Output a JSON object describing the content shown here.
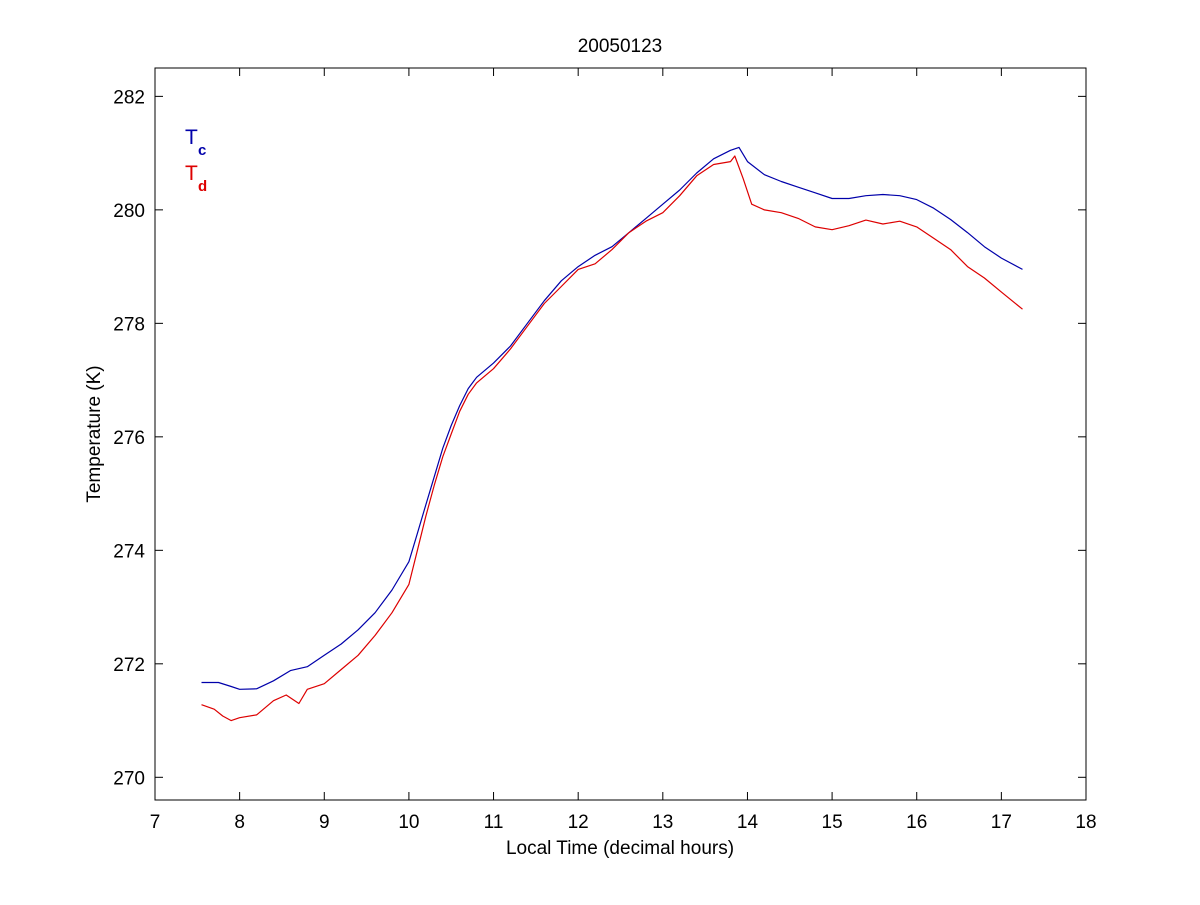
{
  "chart_data": {
    "type": "line",
    "title": "20050123",
    "xlabel": "Local Time (decimal hours)",
    "ylabel": "Temperature (K)",
    "xlim": [
      7,
      18
    ],
    "ylim": [
      269.6,
      282.5
    ],
    "xticks": [
      7,
      8,
      9,
      10,
      11,
      12,
      13,
      14,
      15,
      16,
      17,
      18
    ],
    "yticks": [
      270,
      272,
      274,
      276,
      278,
      280,
      282
    ],
    "xtick_labels": [
      "7",
      "8",
      "9",
      "10",
      "11",
      "12",
      "13",
      "14",
      "15",
      "16",
      "17",
      "18"
    ],
    "ytick_labels": [
      "270",
      "272",
      "274",
      "276",
      "278",
      "280",
      "282"
    ],
    "grid": false,
    "legend": "top-left",
    "legend_entries": [
      {
        "main": "T",
        "sub": "c",
        "color": "#0000aa"
      },
      {
        "main": "T",
        "sub": "d",
        "color": "#dd0000"
      }
    ],
    "series": [
      {
        "color": "#0000aa",
        "x": [
          7.55,
          7.75,
          7.9,
          8.0,
          8.2,
          8.4,
          8.6,
          8.8,
          9.0,
          9.2,
          9.4,
          9.6,
          9.8,
          10.0,
          10.1,
          10.2,
          10.3,
          10.4,
          10.5,
          10.6,
          10.7,
          10.8,
          11.0,
          11.2,
          11.4,
          11.6,
          11.8,
          12.0,
          12.2,
          12.4,
          12.6,
          12.8,
          13.0,
          13.2,
          13.4,
          13.6,
          13.8,
          13.9,
          14.0,
          14.2,
          14.4,
          14.6,
          14.8,
          15.0,
          15.2,
          15.4,
          15.6,
          15.8,
          16.0,
          16.2,
          16.4,
          16.6,
          16.8,
          17.0,
          17.25
        ],
        "y": [
          271.67,
          271.67,
          271.6,
          271.55,
          271.56,
          271.7,
          271.88,
          271.95,
          272.15,
          272.35,
          272.6,
          272.9,
          273.3,
          273.8,
          274.3,
          274.8,
          275.3,
          275.8,
          276.2,
          276.55,
          276.85,
          277.05,
          277.3,
          277.6,
          278.0,
          278.4,
          278.75,
          279.0,
          279.2,
          279.35,
          279.6,
          279.85,
          280.1,
          280.35,
          280.65,
          280.9,
          281.05,
          281.1,
          280.85,
          280.62,
          280.5,
          280.4,
          280.3,
          280.2,
          280.2,
          280.25,
          280.27,
          280.25,
          280.18,
          280.03,
          279.83,
          279.6,
          279.35,
          279.15,
          278.95
        ]
      },
      {
        "color": "#dd0000",
        "x": [
          7.55,
          7.7,
          7.8,
          7.9,
          8.0,
          8.2,
          8.4,
          8.55,
          8.7,
          8.8,
          9.0,
          9.2,
          9.4,
          9.6,
          9.8,
          10.0,
          10.1,
          10.2,
          10.3,
          10.4,
          10.5,
          10.6,
          10.7,
          10.8,
          11.0,
          11.2,
          11.4,
          11.6,
          11.8,
          12.0,
          12.2,
          12.4,
          12.6,
          12.8,
          13.0,
          13.2,
          13.4,
          13.6,
          13.8,
          13.85,
          13.95,
          14.05,
          14.2,
          14.4,
          14.6,
          14.8,
          15.0,
          15.2,
          15.4,
          15.6,
          15.8,
          16.0,
          16.2,
          16.4,
          16.6,
          16.8,
          17.0,
          17.25
        ],
        "y": [
          271.28,
          271.2,
          271.08,
          271.0,
          271.05,
          271.1,
          271.35,
          271.45,
          271.3,
          271.55,
          271.65,
          271.9,
          272.15,
          272.5,
          272.9,
          273.4,
          274.0,
          274.6,
          275.15,
          275.65,
          276.05,
          276.45,
          276.75,
          276.95,
          277.2,
          277.55,
          277.95,
          278.35,
          278.65,
          278.95,
          279.05,
          279.3,
          279.6,
          279.8,
          279.95,
          280.25,
          280.6,
          280.8,
          280.85,
          280.95,
          280.55,
          280.1,
          280.0,
          279.95,
          279.85,
          279.7,
          279.65,
          279.72,
          279.82,
          279.75,
          279.8,
          279.7,
          279.5,
          279.3,
          279.0,
          278.8,
          278.55,
          278.25
        ]
      }
    ]
  }
}
